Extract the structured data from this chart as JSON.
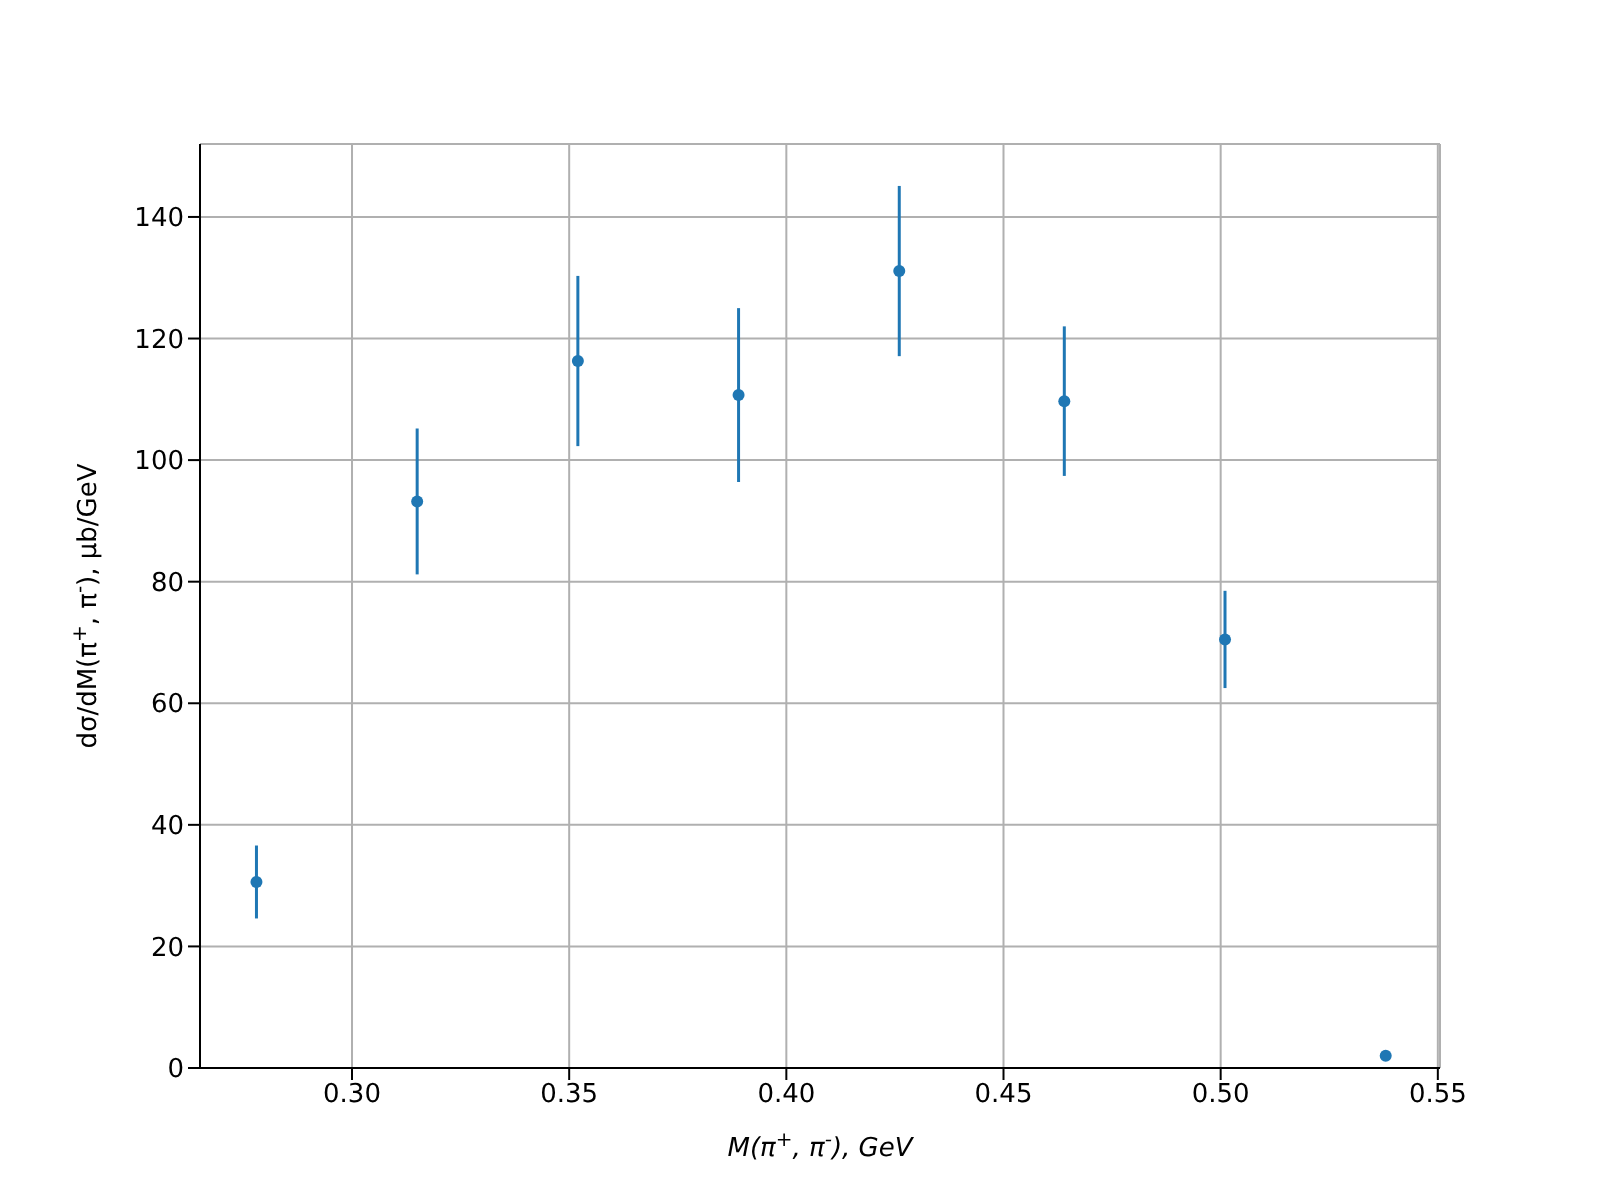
{
  "chart_data": {
    "type": "scatter",
    "xlabel": "M(π$^{+}$, π$^{-}$), GeV",
    "ylabel": "dσ/dM(π$^{+}$, π$^{-}$), μb/GeV",
    "x": [
      0.278,
      0.315,
      0.352,
      0.389,
      0.426,
      0.464,
      0.501,
      0.538
    ],
    "values": [
      30.6,
      93.2,
      116.3,
      110.7,
      131.1,
      109.7,
      70.5,
      2
    ],
    "errors": [
      6,
      12,
      14,
      14.3,
      14,
      12.3,
      8,
      null
    ],
    "color": "#1f77b4",
    "marker": "circle",
    "grid": true,
    "xlim": [
      0.265,
      0.5505
    ],
    "xticks": [
      {
        "value": 0.3,
        "label": "0.30"
      },
      {
        "value": 0.35,
        "label": "0.35"
      },
      {
        "value": 0.4,
        "label": "0.40"
      },
      {
        "value": 0.45,
        "label": "0.45"
      },
      {
        "value": 0.5,
        "label": "0.50"
      },
      {
        "value": 0.55,
        "label": "0.55"
      }
    ],
    "ylim": [
      0,
      152
    ],
    "yticks": [
      0,
      20,
      40,
      60,
      80,
      100,
      120,
      140
    ]
  }
}
